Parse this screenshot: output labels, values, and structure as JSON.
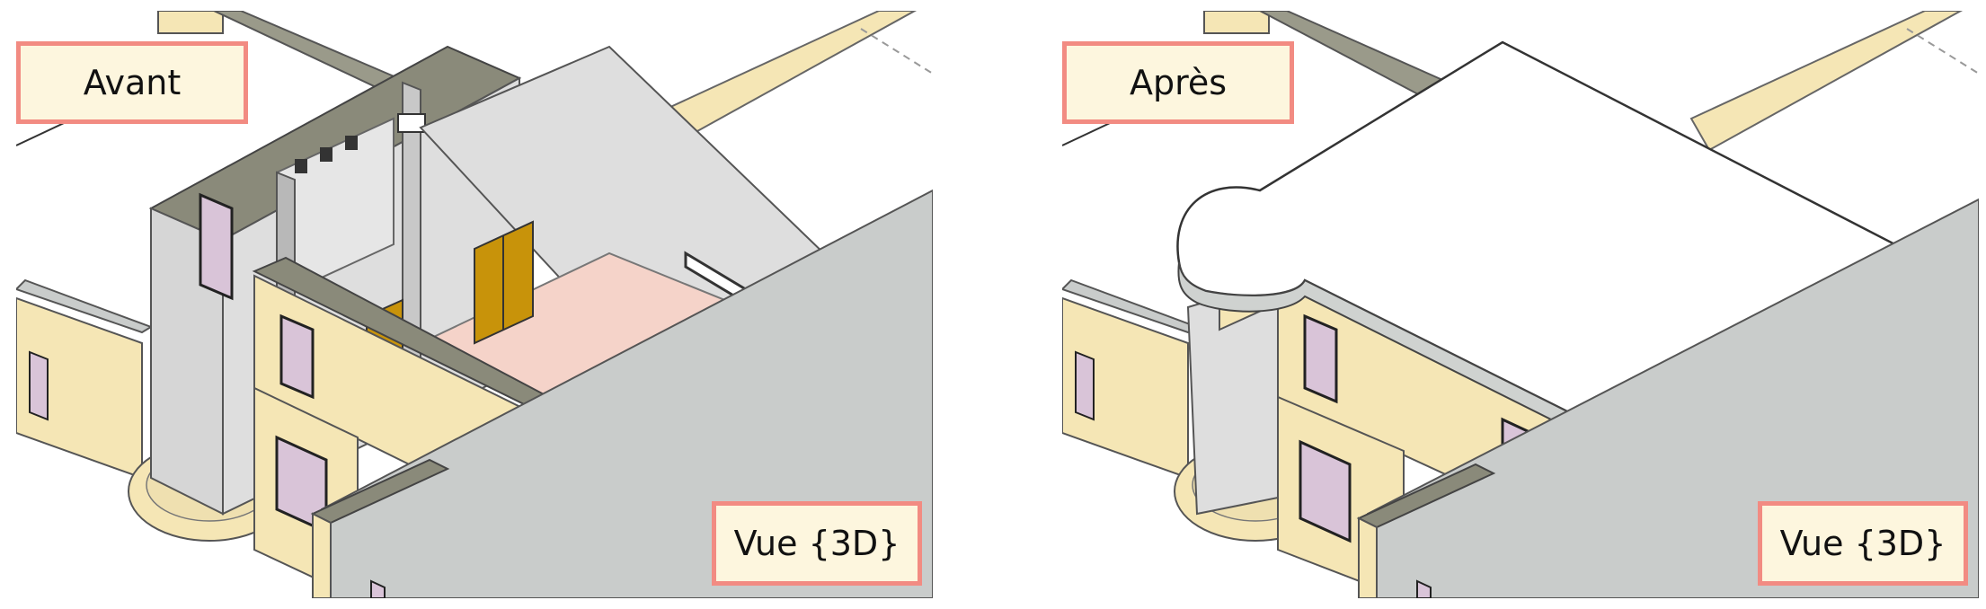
{
  "panels": {
    "before": {
      "label": "Avant",
      "view_label": "Vue {3D}"
    },
    "after": {
      "label": "Après",
      "view_label": "Vue {3D}"
    }
  },
  "colors": {
    "label_border": "#f28b82",
    "label_fill": "#fdf6de",
    "wall_exterior": "#f5e6b5",
    "wall_shadow": "#e6d39a",
    "wall_interior": "#dedede",
    "floor_room": "#f5d3c9",
    "door": "#c8930a",
    "roof": "#ffffff",
    "terrace": "#c9cccb",
    "window_glass": "#d9c4d8"
  }
}
